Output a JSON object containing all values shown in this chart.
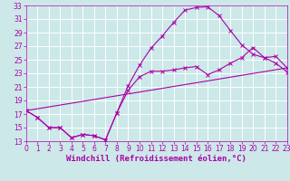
{
  "bg_color": "#cce8e8",
  "grid_color": "#ffffff",
  "line_color": "#aa00aa",
  "xlim": [
    0,
    23
  ],
  "ylim": [
    13,
    33
  ],
  "xticks": [
    0,
    1,
    2,
    3,
    4,
    5,
    6,
    7,
    8,
    9,
    10,
    11,
    12,
    13,
    14,
    15,
    16,
    17,
    18,
    19,
    20,
    21,
    22,
    23
  ],
  "yticks": [
    13,
    15,
    17,
    19,
    21,
    23,
    25,
    27,
    29,
    31,
    33
  ],
  "curve1_x": [
    0,
    1,
    2,
    3,
    4,
    5,
    6,
    7,
    8,
    9,
    10,
    11,
    12,
    13,
    14,
    15,
    16,
    17,
    18,
    19,
    20,
    21,
    22,
    23
  ],
  "curve1_y": [
    17.5,
    16.5,
    15.0,
    15.0,
    13.5,
    14.0,
    13.8,
    13.2,
    17.2,
    21.2,
    24.2,
    26.7,
    28.5,
    30.5,
    32.3,
    32.7,
    32.8,
    31.5,
    29.3,
    27.2,
    25.8,
    25.3,
    24.5,
    23.2
  ],
  "curve2_x": [
    0,
    1,
    2,
    3,
    4,
    5,
    6,
    7,
    8,
    9,
    10,
    11,
    12,
    13,
    14,
    15,
    16,
    17,
    18,
    19,
    20,
    21,
    22,
    23
  ],
  "curve2_y": [
    17.5,
    16.5,
    15.0,
    15.0,
    13.5,
    14.0,
    13.8,
    13.2,
    17.2,
    20.5,
    22.5,
    23.3,
    23.3,
    23.5,
    23.8,
    24.0,
    22.8,
    23.5,
    24.5,
    25.3,
    26.8,
    25.3,
    25.5,
    23.8
  ],
  "line3_x": [
    0,
    23
  ],
  "line3_y": [
    17.5,
    23.8
  ],
  "xlabel": "Windchill (Refroidissement éolien,°C)",
  "tick_fontsize": 5.5,
  "xlabel_fontsize": 6.5
}
